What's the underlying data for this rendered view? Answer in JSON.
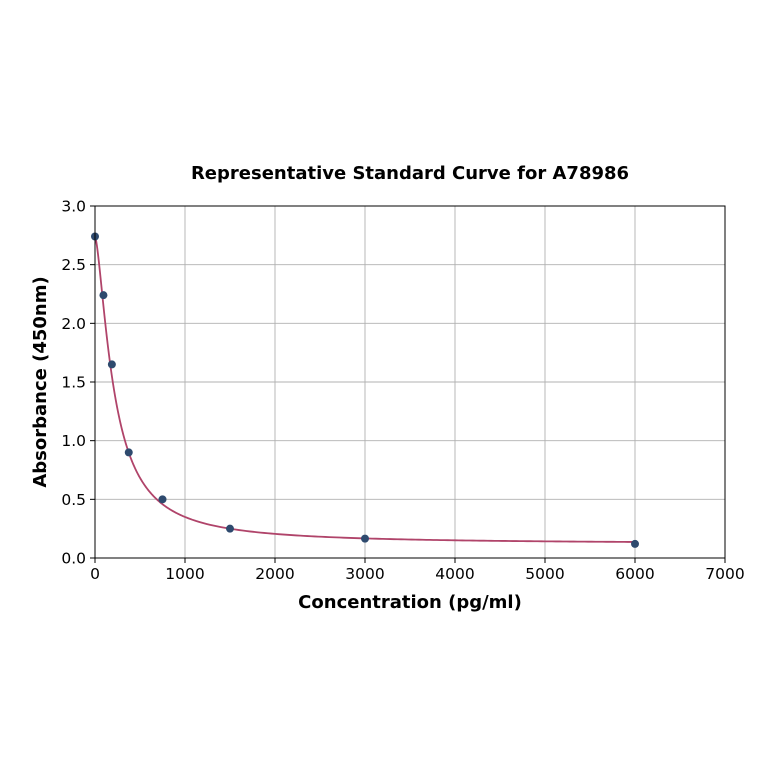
{
  "chart_data": {
    "type": "scatter",
    "title": "Representative Standard Curve for A78986",
    "xlabel": "Concentration (pg/ml)",
    "ylabel": "Absorbance (450nm)",
    "xlim": [
      0,
      7000
    ],
    "ylim": [
      0,
      3.0
    ],
    "xticks": [
      "0",
      "1000",
      "2000",
      "3000",
      "4000",
      "5000",
      "6000",
      "7000"
    ],
    "yticks": [
      "0.0",
      "0.5",
      "1.0",
      "1.5",
      "2.0",
      "2.5",
      "3.0"
    ],
    "grid": true,
    "fit_curve": true,
    "x": [
      0,
      93.75,
      187.5,
      375,
      750,
      1500,
      3000,
      6000
    ],
    "y": [
      2.74,
      2.24,
      1.65,
      0.9,
      0.5,
      0.25,
      0.165,
      0.12
    ],
    "colors": {
      "points": "#2e4a6e",
      "curve": "#b0446a",
      "grid": "#b0b0b0"
    }
  }
}
